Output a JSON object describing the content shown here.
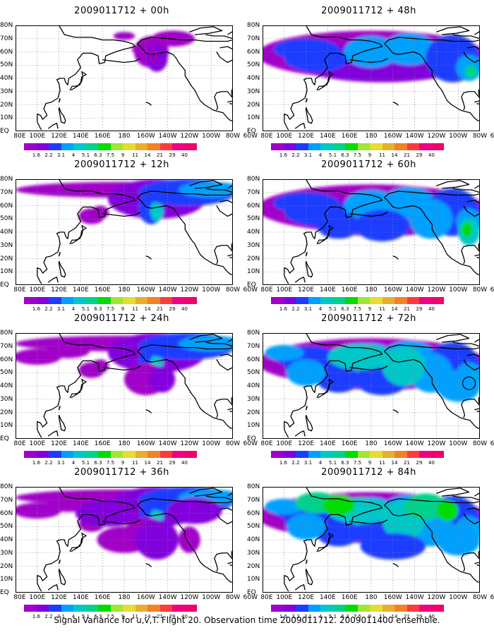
{
  "panels": [
    {
      "title": "2009011712 + 00h",
      "level": 0
    },
    {
      "title": "2009011712 + 12h",
      "level": 1
    },
    {
      "title": "2009011712 + 24h",
      "level": 2
    },
    {
      "title": "2009011712 + 36h",
      "level": 3
    },
    {
      "title": "2009011712 + 48h",
      "level": 4
    },
    {
      "title": "2009011712 + 60h",
      "level": 5
    },
    {
      "title": "2009011712 + 72h",
      "level": 6
    },
    {
      "title": "2009011712 + 84h",
      "level": 7
    }
  ],
  "lat_labels": [
    "80N",
    "70N",
    "60N",
    "50N",
    "40N",
    "30N",
    "20N",
    "10N",
    "EQ"
  ],
  "lon_labels": [
    "80E",
    "100E",
    "120E",
    "140E",
    "160E",
    "180",
    "160W",
    "140W",
    "120W",
    "100W",
    "80W",
    "60W"
  ],
  "colorbar": {
    "ticks": [
      "1.6",
      "2.2",
      "3.1",
      "4",
      "5.1",
      "6.3",
      "7.5",
      "9",
      "11",
      "14",
      "21",
      "29",
      "40"
    ],
    "colors": [
      "#a000c8",
      "#8200dc",
      "#1e3cff",
      "#00a0ff",
      "#00c8c8",
      "#00d28c",
      "#00dc00",
      "#a0e632",
      "#e6dc32",
      "#e6af2d",
      "#f08228",
      "#fa3c3c",
      "#f00082"
    ]
  },
  "caption": "Signal Variance for u,v,T. Flight 20. Observation time 2009011712. 2009011400 ensemble."
}
